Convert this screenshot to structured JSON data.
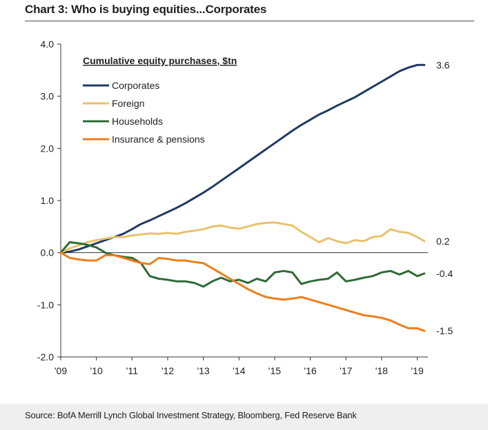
{
  "header": {
    "title": "Chart 3: Who is buying equities...Corporates"
  },
  "footer": {
    "source": "Source: BofA Merrill Lynch Global Investment Strategy, Bloomberg, Fed Reserve Bank"
  },
  "chart_data": {
    "type": "line",
    "title": "Chart 3: Who is buying equities...Corporates",
    "legend_title": "Cumulative equity purchases, $tn",
    "legend_position": "top-left",
    "xlabel": "",
    "ylabel": "",
    "xlim": [
      2009,
      2019.3
    ],
    "ylim": [
      -2.0,
      4.0
    ],
    "x_ticks": [
      2009,
      2010,
      2011,
      2012,
      2013,
      2014,
      2015,
      2016,
      2017,
      2018,
      2019
    ],
    "x_tick_labels": [
      "'09",
      "'10",
      "'11",
      "'12",
      "'13",
      "'14",
      "'15",
      "'16",
      "'17",
      "'18",
      "'19"
    ],
    "y_ticks": [
      -2.0,
      -1.0,
      0.0,
      1.0,
      2.0,
      3.0,
      4.0
    ],
    "y_tick_labels": [
      "-2.0",
      "-1.0",
      "0.0",
      "1.0",
      "2.0",
      "3.0",
      "4.0"
    ],
    "grid": false,
    "series": [
      {
        "name": "Corporates",
        "color": "#1f3864",
        "end_label": "3.6",
        "x": [
          2009.0,
          2009.25,
          2009.5,
          2009.75,
          2010.0,
          2010.25,
          2010.5,
          2010.75,
          2011.0,
          2011.25,
          2011.5,
          2011.75,
          2012.0,
          2012.25,
          2012.5,
          2012.75,
          2013.0,
          2013.25,
          2013.5,
          2013.75,
          2014.0,
          2014.25,
          2014.5,
          2014.75,
          2015.0,
          2015.25,
          2015.5,
          2015.75,
          2016.0,
          2016.25,
          2016.5,
          2016.75,
          2017.0,
          2017.25,
          2017.5,
          2017.75,
          2018.0,
          2018.25,
          2018.5,
          2018.75,
          2019.0,
          2019.2
        ],
        "values": [
          0.0,
          0.02,
          0.06,
          0.12,
          0.18,
          0.24,
          0.3,
          0.36,
          0.45,
          0.55,
          0.62,
          0.7,
          0.78,
          0.86,
          0.95,
          1.05,
          1.15,
          1.26,
          1.38,
          1.5,
          1.62,
          1.74,
          1.86,
          1.98,
          2.1,
          2.22,
          2.34,
          2.45,
          2.55,
          2.65,
          2.73,
          2.82,
          2.9,
          2.98,
          3.08,
          3.18,
          3.28,
          3.38,
          3.48,
          3.55,
          3.6,
          3.6
        ]
      },
      {
        "name": "Foreign",
        "color": "#e8c26b",
        "end_label": "0.2",
        "x": [
          2009.0,
          2009.25,
          2009.5,
          2009.75,
          2010.0,
          2010.25,
          2010.5,
          2010.75,
          2011.0,
          2011.25,
          2011.5,
          2011.75,
          2012.0,
          2012.25,
          2012.5,
          2012.75,
          2013.0,
          2013.25,
          2013.5,
          2013.75,
          2014.0,
          2014.25,
          2014.5,
          2014.75,
          2015.0,
          2015.25,
          2015.5,
          2015.75,
          2016.0,
          2016.25,
          2016.5,
          2016.75,
          2017.0,
          2017.25,
          2017.5,
          2017.75,
          2018.0,
          2018.25,
          2018.5,
          2018.75,
          2019.0,
          2019.2
        ],
        "values": [
          0.0,
          0.08,
          0.14,
          0.2,
          0.24,
          0.27,
          0.3,
          0.3,
          0.33,
          0.35,
          0.37,
          0.36,
          0.38,
          0.36,
          0.4,
          0.42,
          0.45,
          0.5,
          0.52,
          0.48,
          0.46,
          0.5,
          0.55,
          0.57,
          0.58,
          0.55,
          0.52,
          0.4,
          0.3,
          0.2,
          0.28,
          0.22,
          0.18,
          0.24,
          0.22,
          0.3,
          0.32,
          0.45,
          0.4,
          0.38,
          0.3,
          0.22
        ]
      },
      {
        "name": "Households",
        "color": "#2e6b36",
        "end_label": "-0.4",
        "x": [
          2009.0,
          2009.25,
          2009.5,
          2009.75,
          2010.0,
          2010.25,
          2010.5,
          2010.75,
          2011.0,
          2011.25,
          2011.5,
          2011.75,
          2012.0,
          2012.25,
          2012.5,
          2012.75,
          2013.0,
          2013.25,
          2013.5,
          2013.75,
          2014.0,
          2014.25,
          2014.5,
          2014.75,
          2015.0,
          2015.25,
          2015.5,
          2015.75,
          2016.0,
          2016.25,
          2016.5,
          2016.75,
          2017.0,
          2017.25,
          2017.5,
          2017.75,
          2018.0,
          2018.25,
          2018.5,
          2018.75,
          2019.0,
          2019.2
        ],
        "values": [
          0.0,
          0.2,
          0.18,
          0.15,
          0.1,
          0.0,
          -0.05,
          -0.08,
          -0.1,
          -0.2,
          -0.45,
          -0.5,
          -0.52,
          -0.55,
          -0.55,
          -0.58,
          -0.65,
          -0.55,
          -0.48,
          -0.55,
          -0.52,
          -0.58,
          -0.5,
          -0.55,
          -0.38,
          -0.35,
          -0.38,
          -0.6,
          -0.55,
          -0.52,
          -0.5,
          -0.38,
          -0.55,
          -0.52,
          -0.48,
          -0.45,
          -0.38,
          -0.35,
          -0.42,
          -0.35,
          -0.45,
          -0.4
        ]
      },
      {
        "name": "Insurance & pensions",
        "color": "#ee7d1a",
        "end_label": "-1.5",
        "x": [
          2009.0,
          2009.25,
          2009.5,
          2009.75,
          2010.0,
          2010.25,
          2010.5,
          2010.75,
          2011.0,
          2011.25,
          2011.5,
          2011.75,
          2012.0,
          2012.25,
          2012.5,
          2012.75,
          2013.0,
          2013.25,
          2013.5,
          2013.75,
          2014.0,
          2014.25,
          2014.5,
          2014.75,
          2015.0,
          2015.25,
          2015.5,
          2015.75,
          2016.0,
          2016.25,
          2016.5,
          2016.75,
          2017.0,
          2017.25,
          2017.5,
          2017.75,
          2018.0,
          2018.25,
          2018.5,
          2018.75,
          2019.0,
          2019.2
        ],
        "values": [
          0.0,
          -0.1,
          -0.13,
          -0.15,
          -0.15,
          -0.05,
          -0.05,
          -0.1,
          -0.15,
          -0.2,
          -0.22,
          -0.1,
          -0.12,
          -0.15,
          -0.15,
          -0.18,
          -0.2,
          -0.3,
          -0.4,
          -0.5,
          -0.6,
          -0.7,
          -0.78,
          -0.85,
          -0.88,
          -0.9,
          -0.88,
          -0.85,
          -0.9,
          -0.95,
          -1.0,
          -1.05,
          -1.1,
          -1.15,
          -1.2,
          -1.22,
          -1.25,
          -1.3,
          -1.38,
          -1.45,
          -1.45,
          -1.5
        ]
      }
    ]
  }
}
